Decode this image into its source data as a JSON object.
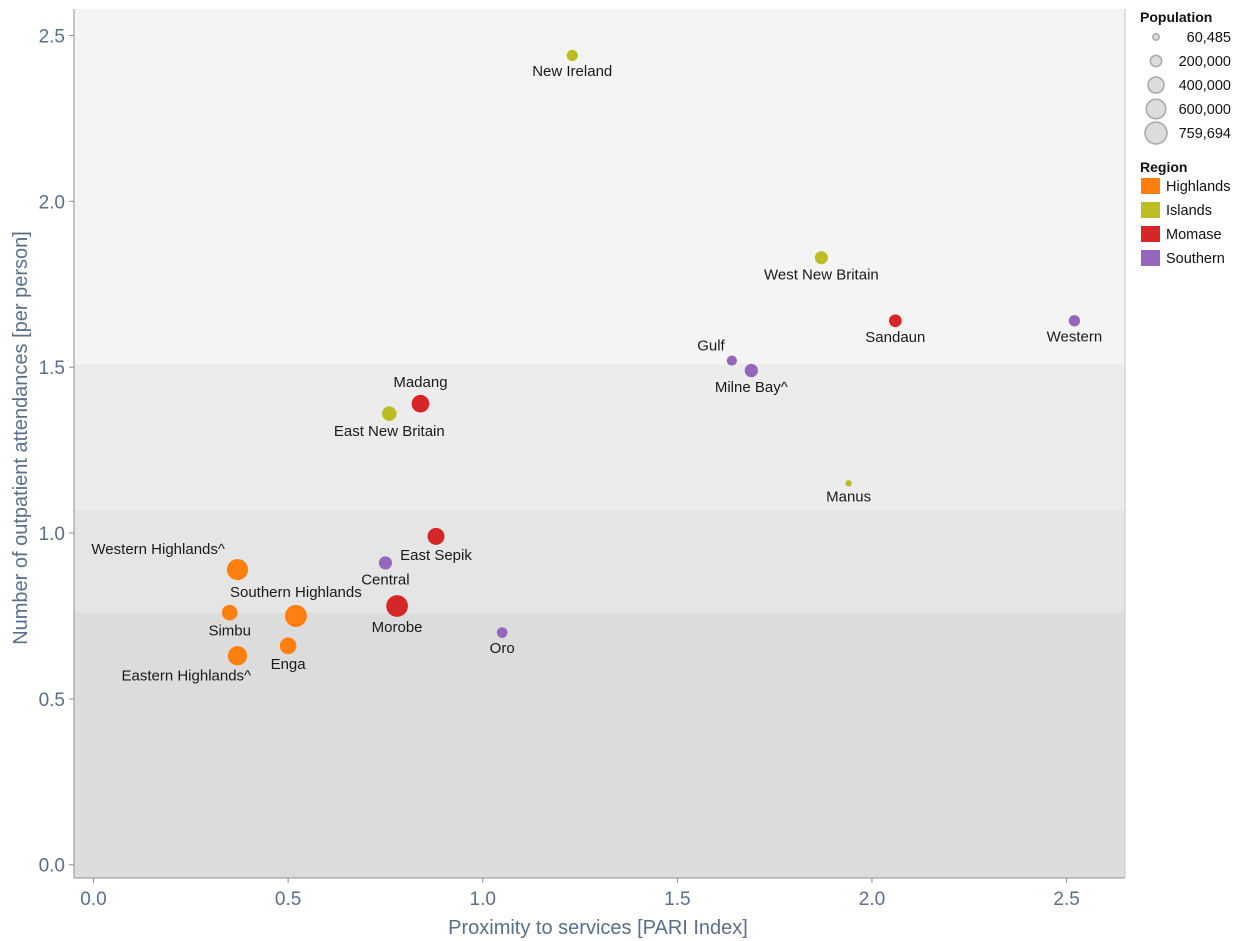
{
  "chart_data": {
    "type": "scatter",
    "xlabel": "Proximity to services [PARI Index]",
    "ylabel": "Number of outpatient attendances [per person]",
    "xlim": [
      -0.05,
      2.65
    ],
    "ylim": [
      -0.04,
      2.58
    ],
    "xticks": [
      0.0,
      0.5,
      1.0,
      1.5,
      2.0,
      2.5
    ],
    "yticks": [
      0.0,
      0.5,
      1.0,
      1.5,
      2.0,
      2.5
    ],
    "xtick_labels": [
      "0.0",
      "0.5",
      "1.0",
      "1.5",
      "2.0",
      "2.5"
    ],
    "ytick_labels": [
      "0.0",
      "0.5",
      "1.0",
      "1.5",
      "2.0",
      "2.5"
    ],
    "bands": [
      {
        "from": 1.51,
        "to": 2.58,
        "color": "#f4f4f4"
      },
      {
        "from": 1.07,
        "to": 1.51,
        "color": "#ececec"
      },
      {
        "from": 0.76,
        "to": 1.07,
        "color": "#e5e5e5"
      },
      {
        "from": -0.04,
        "to": 0.76,
        "color": "#dcdcdc"
      }
    ],
    "regions": [
      {
        "name": "Highlands",
        "color": "#ff7f0e"
      },
      {
        "name": "Islands",
        "color": "#bcbd22"
      },
      {
        "name": "Momase",
        "color": "#d62728"
      },
      {
        "name": "Southern",
        "color": "#9467bd"
      }
    ],
    "size_legend_title": "Population",
    "size_legend": [
      {
        "label": "60,485",
        "value": 60485
      },
      {
        "label": "200,000",
        "value": 200000
      },
      {
        "label": "400,000",
        "value": 400000
      },
      {
        "label": "600,000",
        "value": 600000
      },
      {
        "label": "759,694",
        "value": 759694
      }
    ],
    "color_legend_title": "Region",
    "points": [
      {
        "name": "New Ireland",
        "x": 1.23,
        "y": 2.44,
        "region": "Islands",
        "population": 195000,
        "label_pos": "below"
      },
      {
        "name": "West New Britain",
        "x": 1.87,
        "y": 1.83,
        "region": "Islands",
        "population": 265000,
        "label_pos": "below"
      },
      {
        "name": "Sandaun",
        "x": 2.06,
        "y": 1.64,
        "region": "Momase",
        "population": 250000,
        "label_pos": "below"
      },
      {
        "name": "Western",
        "x": 2.52,
        "y": 1.64,
        "region": "Southern",
        "population": 200000,
        "label_pos": "below"
      },
      {
        "name": "Gulf",
        "x": 1.64,
        "y": 1.52,
        "region": "Southern",
        "population": 160000,
        "label_pos": "upper-left"
      },
      {
        "name": "Milne Bay^",
        "x": 1.69,
        "y": 1.49,
        "region": "Southern",
        "population": 275000,
        "label_pos": "below"
      },
      {
        "name": "Madang",
        "x": 0.84,
        "y": 1.39,
        "region": "Momase",
        "population": 490000,
        "label_pos": "above"
      },
      {
        "name": "East New Britain",
        "x": 0.76,
        "y": 1.36,
        "region": "Islands",
        "population": 330000,
        "label_pos": "below"
      },
      {
        "name": "Manus",
        "x": 1.94,
        "y": 1.15,
        "region": "Islands",
        "population": 60485,
        "label_pos": "below"
      },
      {
        "name": "East Sepik",
        "x": 0.88,
        "y": 0.99,
        "region": "Momase",
        "population": 450000,
        "label_pos": "below"
      },
      {
        "name": "Western Highlands^",
        "x": 0.37,
        "y": 0.89,
        "region": "Highlands",
        "population": 700000,
        "label_pos": "upper-left"
      },
      {
        "name": "Central",
        "x": 0.75,
        "y": 0.91,
        "region": "Southern",
        "population": 270000,
        "label_pos": "below"
      },
      {
        "name": "Southern Highlands",
        "x": 0.52,
        "y": 0.75,
        "region": "Highlands",
        "population": 759694,
        "label_pos": "above"
      },
      {
        "name": "Morobe",
        "x": 0.78,
        "y": 0.78,
        "region": "Momase",
        "population": 740000,
        "label_pos": "below"
      },
      {
        "name": "Simbu",
        "x": 0.35,
        "y": 0.76,
        "region": "Highlands",
        "population": 380000,
        "label_pos": "below"
      },
      {
        "name": "Oro",
        "x": 1.05,
        "y": 0.7,
        "region": "Southern",
        "population": 175000,
        "label_pos": "below"
      },
      {
        "name": "Enga",
        "x": 0.5,
        "y": 0.66,
        "region": "Highlands",
        "population": 430000,
        "label_pos": "below"
      },
      {
        "name": "Eastern Highlands^",
        "x": 0.37,
        "y": 0.63,
        "region": "Highlands",
        "population": 580000,
        "label_pos": "lower-left"
      }
    ]
  }
}
